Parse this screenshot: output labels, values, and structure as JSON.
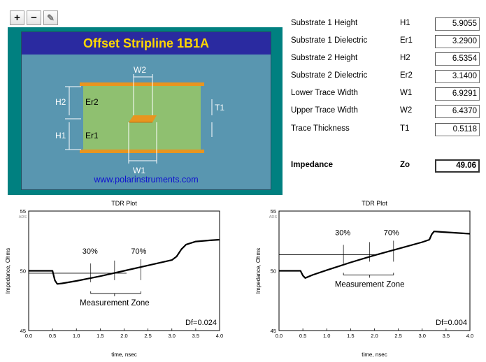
{
  "toolbar": {
    "zoom_in": "+",
    "zoom_out": "−",
    "pen": "✎"
  },
  "diagram": {
    "title": "Offset Stripline 1B1A",
    "labels": {
      "h1": "H1",
      "h2": "H2",
      "er1": "Er1",
      "er2": "Er2",
      "w1": "W1",
      "w2": "W2",
      "t1": "T1"
    },
    "website": "www.polarinstruments.com",
    "colors": {
      "panel": "#008080",
      "background": "#5996b0",
      "title_bar": "#2a2aa0",
      "title_text": "#ffd700",
      "dielectric": "#8fc070",
      "copper": "#e8951f",
      "link": "#1010d0"
    }
  },
  "parameters": [
    {
      "label": "Substrate 1 Height",
      "symbol": "H1",
      "value": "5.9055"
    },
    {
      "label": "Substrate 1 Dielectric",
      "symbol": "Er1",
      "value": "3.2900"
    },
    {
      "label": "Substrate 2 Height",
      "symbol": "H2",
      "value": "6.5354"
    },
    {
      "label": "Substrate 2 Dielectric",
      "symbol": "Er2",
      "value": "3.1400"
    },
    {
      "label": "Lower Trace Width",
      "symbol": "W1",
      "value": "6.9291"
    },
    {
      "label": "Upper Trace Width",
      "symbol": "W2",
      "value": "6.4370"
    },
    {
      "label": "Trace Thickness",
      "symbol": "T1",
      "value": "0.5118"
    }
  ],
  "impedance": {
    "label": "Impedance",
    "symbol": "Zo",
    "value": "49.06"
  },
  "chart_data": [
    {
      "type": "line",
      "title": "TDR Plot",
      "corner_label": "ADS",
      "xlabel": "time, nsec",
      "ylabel": "Impedance, Ohms",
      "xlim": [
        0,
        4
      ],
      "ylim": [
        45,
        55
      ],
      "xticks": [
        "0.0",
        "0.5",
        "1.0",
        "1.5",
        "2.0",
        "2.5",
        "3.0",
        "3.5",
        "4.0"
      ],
      "yticks": [
        "45",
        "50",
        "55"
      ],
      "series": [
        {
          "name": "TDR",
          "x": [
            0,
            0.5,
            0.55,
            0.6,
            0.7,
            1.0,
            1.5,
            2.0,
            2.5,
            3.0,
            3.1,
            3.2,
            3.3,
            3.5,
            3.8,
            4.0
          ],
          "y": [
            50,
            50,
            49.2,
            48.9,
            48.95,
            49.15,
            49.55,
            50.0,
            50.45,
            50.9,
            51.2,
            51.8,
            52.2,
            52.45,
            52.55,
            52.6
          ]
        }
      ],
      "reference_x": [
        0,
        2.05
      ],
      "reference_y": 49.8,
      "zone": {
        "start": 1.3,
        "mid": 1.8,
        "end": 2.35
      },
      "annotations": {
        "p30": "30%",
        "p70": "70%",
        "zone_label": "Measurement Zone",
        "df": "Df=0.024"
      }
    },
    {
      "type": "line",
      "title": "TDR Plot",
      "corner_label": "ADS",
      "xlabel": "time, nsec",
      "ylabel": "Impedance, Ohms",
      "xlim": [
        0,
        4
      ],
      "ylim": [
        45,
        55
      ],
      "xticks": [
        "0.0",
        "0.5",
        "1.0",
        "1.5",
        "2.0",
        "2.5",
        "3.0",
        "3.5",
        "4.0"
      ],
      "yticks": [
        "45",
        "50",
        "55"
      ],
      "series": [
        {
          "name": "TDR",
          "x": [
            0,
            0.45,
            0.5,
            0.55,
            0.7,
            1.0,
            1.5,
            2.0,
            2.5,
            3.0,
            3.15,
            3.2,
            3.25,
            3.4,
            4.0
          ],
          "y": [
            50,
            50,
            49.6,
            49.4,
            49.65,
            50.05,
            50.7,
            51.3,
            51.85,
            52.4,
            52.6,
            53.05,
            53.3,
            53.25,
            53.1
          ]
        }
      ],
      "reference_x": [
        0,
        2.1
      ],
      "reference_y": 51.35,
      "zone": {
        "start": 1.35,
        "mid": 1.9,
        "end": 2.4
      },
      "annotations": {
        "p30": "30%",
        "p70": "70%",
        "zone_label": "Measurement Zone",
        "df": "Df=0.004"
      }
    }
  ]
}
